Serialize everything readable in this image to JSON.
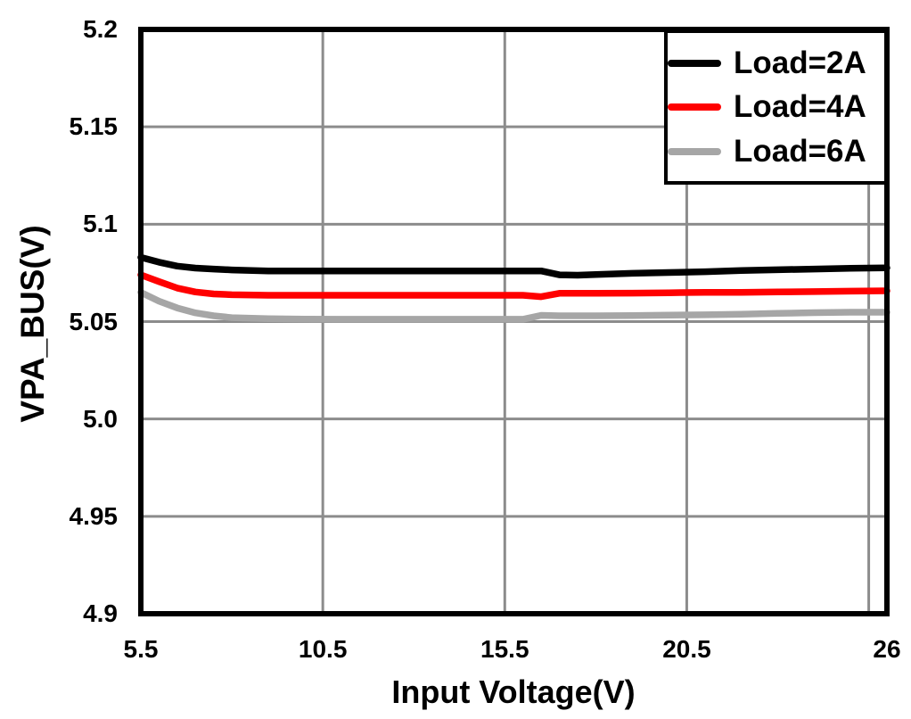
{
  "chart_data": {
    "type": "line",
    "title": "",
    "xlabel": "Input Voltage(V)",
    "ylabel": "VPA_BUS(V)",
    "xlim": [
      5.5,
      26
    ],
    "ylim": [
      4.9,
      5.2
    ],
    "grid": true,
    "legend_position": "top-right",
    "x_tick_values": [
      5.5,
      10.5,
      15.5,
      20.5,
      26
    ],
    "x_tick_labels": [
      "5.5",
      "10.5",
      "15.5",
      "20.5",
      "26"
    ],
    "y_tick_values": [
      5.2,
      5.15,
      5.1,
      5.05,
      5.0,
      4.95,
      4.9
    ],
    "y_tick_labels": [
      "5.2",
      "5.15",
      "5.1",
      "5.05",
      "5.0",
      "4.95",
      "4.9"
    ],
    "x_gridline_values": [
      10.5,
      15.5,
      20.5,
      25.5
    ],
    "y_gridline_values": [
      4.95,
      5.0,
      5.05,
      5.1,
      5.15
    ],
    "colors": {
      "axis": "#000000",
      "gridline": "#8C8C8C",
      "background": "#FFFFFF"
    },
    "x": [
      5.5,
      6,
      6.5,
      7,
      7.5,
      8,
      9,
      10,
      11,
      12,
      13,
      14,
      15,
      16,
      16.5,
      17,
      17.5,
      18,
      19,
      20,
      21,
      22,
      23,
      24,
      25,
      26
    ],
    "series": [
      {
        "name": "Load=2A",
        "color": "#000000",
        "values": [
          5.083,
          5.0805,
          5.0785,
          5.0775,
          5.077,
          5.0765,
          5.076,
          5.076,
          5.076,
          5.076,
          5.076,
          5.076,
          5.076,
          5.076,
          5.076,
          5.074,
          5.0738,
          5.0742,
          5.0748,
          5.0752,
          5.0756,
          5.0762,
          5.0766,
          5.077,
          5.0774,
          5.0776
        ]
      },
      {
        "name": "Load=4A",
        "color": "#FF0000",
        "values": [
          5.074,
          5.0705,
          5.0672,
          5.0652,
          5.0642,
          5.0638,
          5.0635,
          5.0635,
          5.0635,
          5.0635,
          5.0635,
          5.0635,
          5.0635,
          5.0635,
          5.0628,
          5.0645,
          5.0645,
          5.0645,
          5.0646,
          5.0648,
          5.065,
          5.065,
          5.0652,
          5.0654,
          5.0656,
          5.0658
        ]
      },
      {
        "name": "Load=6A",
        "color": "#A6A6A6",
        "values": [
          5.065,
          5.0605,
          5.057,
          5.0545,
          5.053,
          5.052,
          5.0515,
          5.0513,
          5.0512,
          5.0512,
          5.0512,
          5.0512,
          5.0512,
          5.0512,
          5.0532,
          5.053,
          5.053,
          5.053,
          5.0531,
          5.0533,
          5.0535,
          5.0538,
          5.0542,
          5.0546,
          5.0548,
          5.0548
        ]
      }
    ]
  }
}
